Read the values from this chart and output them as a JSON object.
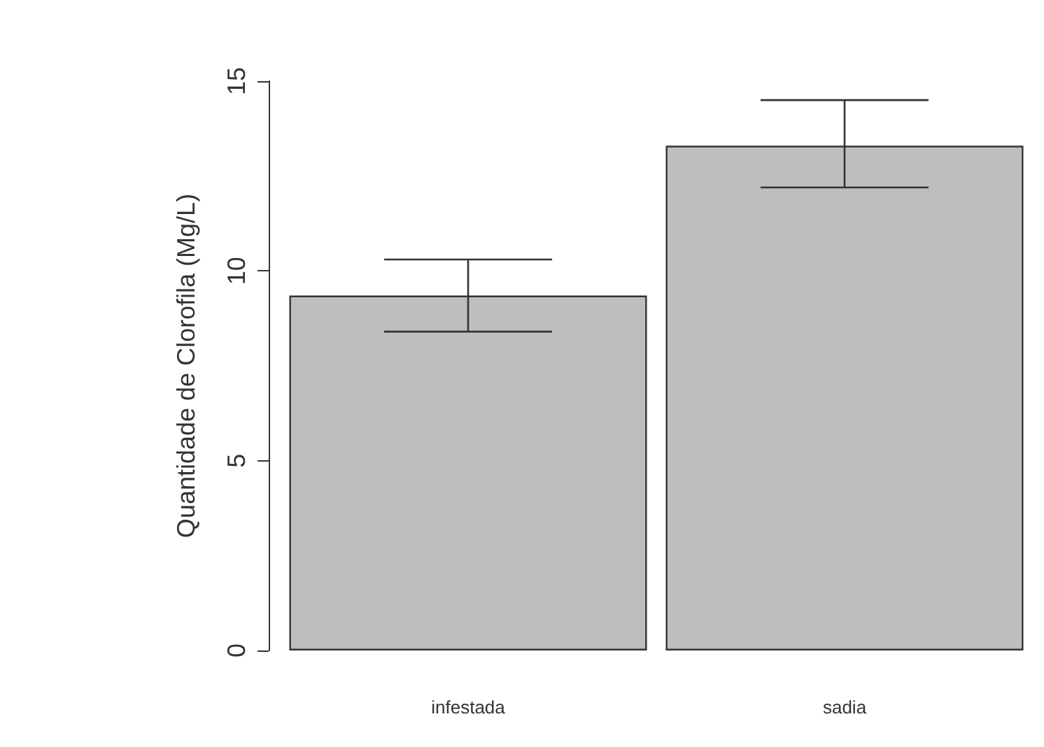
{
  "chart_data": {
    "type": "bar",
    "ylabel": "Quantidade de Clorofila (Mg/L)",
    "categories": [
      "infestada",
      "sadia"
    ],
    "values": [
      9.35,
      13.3
    ],
    "errors": [
      [
        8.4,
        10.3
      ],
      [
        12.2,
        14.5
      ]
    ],
    "color": "#bebebe",
    "ylim": [
      0,
      15
    ],
    "yticks": [
      0,
      5,
      10,
      15
    ],
    "grid": false
  }
}
